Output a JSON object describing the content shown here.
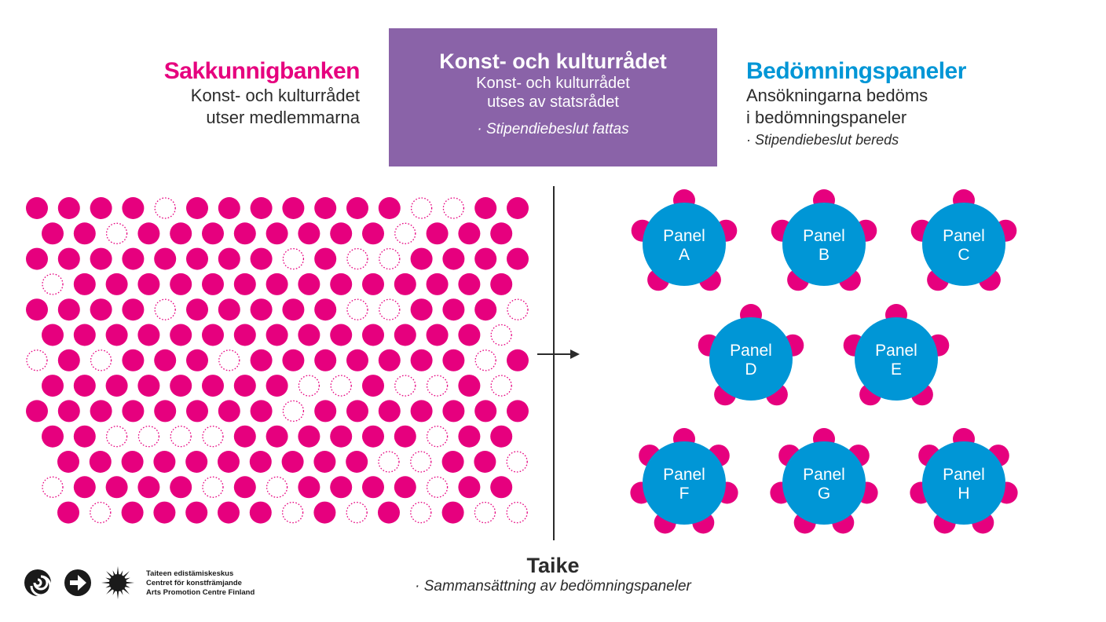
{
  "left": {
    "title": "Sakkunnigbanken",
    "line1": "Konst- och kulturrådet",
    "line2": "utser medlemmarna"
  },
  "center": {
    "title": "Konst- och kulturrådet",
    "line1": "Konst- och kulturrådet",
    "line2": "utses av statsrådet",
    "note": "· Stipendiebeslut fattas"
  },
  "right": {
    "title": "Bedömningspaneler",
    "line1": "Ansökningarna bedöms",
    "line2": "i bedömningspaneler",
    "note": "· Stipendiebeslut bereds"
  },
  "bottom": {
    "title": "Taike",
    "note": "· Sammansättning av bedömningspaneler"
  },
  "logo": {
    "line1": "Taiteen edistämiskeskus",
    "line2": "Centret för konstfrämjande",
    "line3": "Arts Promotion Centre Finland"
  },
  "colors": {
    "magenta": "#e6007e",
    "blue": "#0096d6",
    "purple": "#8a63a8",
    "text": "#2b2b2b"
  },
  "pool": {
    "rows": 13,
    "cols": 16,
    "empty": [
      [
        0,
        4
      ],
      [
        0,
        12
      ],
      [
        0,
        13
      ],
      [
        1,
        2
      ],
      [
        1,
        11
      ],
      [
        2,
        8
      ],
      [
        2,
        10
      ],
      [
        2,
        11
      ],
      [
        3,
        0
      ],
      [
        4,
        4
      ],
      [
        4,
        10
      ],
      [
        4,
        11
      ],
      [
        4,
        15
      ],
      [
        5,
        14
      ],
      [
        6,
        0
      ],
      [
        6,
        2
      ],
      [
        6,
        6
      ],
      [
        6,
        14
      ],
      [
        7,
        8
      ],
      [
        7,
        9
      ],
      [
        7,
        11
      ],
      [
        7,
        12
      ],
      [
        7,
        14
      ],
      [
        8,
        8
      ],
      [
        9,
        2
      ],
      [
        9,
        3
      ],
      [
        9,
        4
      ],
      [
        9,
        5
      ],
      [
        9,
        12
      ],
      [
        10,
        10
      ],
      [
        10,
        11
      ],
      [
        10,
        14
      ],
      [
        10,
        15
      ],
      [
        11,
        0
      ],
      [
        11,
        5
      ],
      [
        11,
        7
      ],
      [
        11,
        12
      ],
      [
        12,
        1
      ],
      [
        12,
        7
      ],
      [
        12,
        9
      ],
      [
        12,
        11
      ],
      [
        12,
        13
      ],
      [
        12,
        14
      ]
    ]
  },
  "panels": [
    {
      "name": "Panel",
      "letter": "A",
      "members": 5
    },
    {
      "name": "Panel",
      "letter": "B",
      "members": 5
    },
    {
      "name": "Panel",
      "letter": "C",
      "members": 5
    },
    {
      "name": "Panel",
      "letter": "D",
      "members": 5
    },
    {
      "name": "Panel",
      "letter": "E",
      "members": 5
    },
    {
      "name": "Panel",
      "letter": "F",
      "members": 7
    },
    {
      "name": "Panel",
      "letter": "G",
      "members": 7
    },
    {
      "name": "Panel",
      "letter": "H",
      "members": 7
    }
  ]
}
